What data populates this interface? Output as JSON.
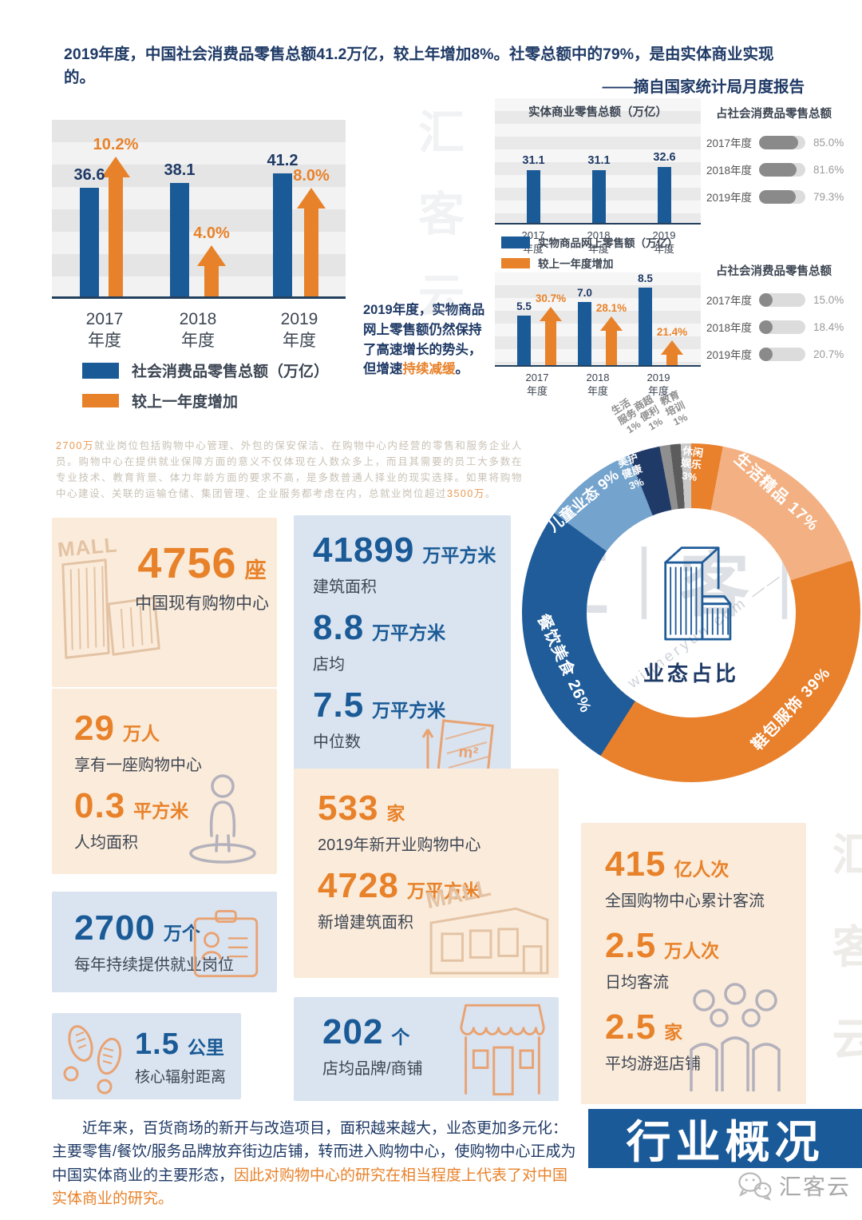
{
  "page": {
    "intro": "2019年度，中国社会消费品零售总额41.2万亿，较上年增加8%。社零总额中的79%，是由实体商业实现的。",
    "attribution": "——摘自国家统计局月度报告",
    "banner_title": "行业概况",
    "logo_text": "汇客云",
    "watermark_chars": "汇｜客｜云",
    "watermark_chars_plain": "汇 客 云",
    "watermark_domain": "—— winneryun.com ——"
  },
  "colors": {
    "bar_blue": "#1A5A96",
    "arrow_orange": "#E8822A",
    "navy_text": "#1F3A66",
    "peach_bg": "#FBEBDA",
    "blue_bg": "#D9E4F0",
    "banner_blue": "#1B5A99"
  },
  "paragraphs": {
    "jobs": {
      "lead": "2700万",
      "body": "就业岗位包括购物中心管理、外包的保安保洁、在购物中心内经营的零售和服务企业人员。购物中心在提供就业保障方面的意义不仅体现在人数众多上，而且其需要的员工大多数在专业技术、教育背景、体力年龄方面的要求不高，是多数普通人择业的现实选择。如果将购物中心建设、关联的运输仓储、集团管理、企业服务都考虑在内，总就业岗位超过",
      "tail_highlight": "3500万",
      "tail": "。"
    },
    "online_note": {
      "body": "2019年度，实物商品网上零售额仍然保持了高速增长的势头，但增速",
      "highlight": "持续减缓",
      "tail": "。"
    },
    "footer": {
      "body": "近年来，百货商场的新开与改造项目，面积越来越大，业态更加多元化：主要零售/餐饮/服务品牌放弃街边店铺，转而进入购物中心，使购物中心正成为中国实体商业的主要形态，",
      "highlight": "因此对购物中心的研究在相当程度上代表了对中国实体商业的研究。"
    }
  },
  "chart_data": [
    {
      "id": "social-retail",
      "type": "bar",
      "categories": [
        "2017年度",
        "2018年度",
        "2019年度"
      ],
      "series": [
        {
          "name": "社会消费品零售总额（万亿）",
          "values": [
            36.6,
            38.1,
            41.2
          ]
        },
        {
          "name": "较上一年度增加",
          "values_pct": [
            10.2,
            4.0,
            8.0
          ]
        }
      ],
      "legend_position": "bottom",
      "ylim": [
        0,
        59
      ]
    },
    {
      "id": "physical-retail",
      "type": "bar",
      "title": "实体商业零售总额（万亿）",
      "categories": [
        "2017年度",
        "2018年度",
        "2019年度"
      ],
      "values": [
        31.1,
        31.1,
        32.6
      ],
      "ylim": [
        0,
        70
      ]
    },
    {
      "id": "physical-share",
      "type": "bar",
      "title": "占社会消费品零售总额",
      "categories": [
        "2017年度",
        "2018年度",
        "2019年度"
      ],
      "values_pct": [
        85.0,
        81.6,
        79.3
      ]
    },
    {
      "id": "online-retail",
      "type": "bar",
      "categories": [
        "2017年度",
        "2018年度",
        "2019年度"
      ],
      "series": [
        {
          "name": "实物商品网上零售额（万亿）",
          "values": [
            5.5,
            7.0,
            8.5
          ]
        },
        {
          "name": "较上一年度增加",
          "values_pct": [
            30.7,
            28.1,
            21.4
          ]
        }
      ],
      "legend_position": "top",
      "ylim": [
        0,
        10
      ]
    },
    {
      "id": "online-share",
      "type": "bar",
      "title": "占社会消费品零售总额",
      "categories": [
        "2017年度",
        "2018年度",
        "2019年度"
      ],
      "values_pct": [
        15.0,
        18.4,
        20.7
      ]
    },
    {
      "id": "format-mix",
      "type": "pie",
      "title": "业态占比",
      "segments": [
        {
          "label": "休闲娱乐",
          "pct": 3,
          "color": "#E8802C"
        },
        {
          "label": "生活精品",
          "pct": 17,
          "color": "#F3B183"
        },
        {
          "label": "鞋包服饰",
          "pct": 39,
          "color": "#E8802C"
        },
        {
          "label": "餐饮美食",
          "pct": 26,
          "color": "#1F5C99"
        },
        {
          "label": "儿童业态",
          "pct": 9,
          "color": "#74A3CD"
        },
        {
          "label": "美护健康",
          "pct": 3,
          "color": "#203A68"
        },
        {
          "label": "生活服务",
          "pct": 1,
          "color": "#8F8F8F"
        },
        {
          "label": "商超便利",
          "pct": 1,
          "color": "#5C5C5C"
        },
        {
          "label": "教育培训",
          "pct": 1,
          "color": "#C9C9C9"
        }
      ]
    }
  ],
  "stats": {
    "existing": {
      "number": "4756",
      "unit": "座",
      "label": "中国现有购物中心"
    },
    "area": {
      "rows": [
        {
          "number": "41899",
          "unit": "万平方米",
          "label": "建筑面积"
        },
        {
          "number": "8.8",
          "unit": "万平方米",
          "label": "店均"
        },
        {
          "number": "7.5",
          "unit": "万平方米",
          "label": "中位数"
        }
      ]
    },
    "percap": {
      "rows": [
        {
          "number": "29",
          "unit": "万人",
          "label": "享有一座购物中心"
        },
        {
          "number": "0.3",
          "unit": "平方米",
          "label": "人均面积"
        }
      ]
    },
    "jobs": {
      "number": "2700",
      "unit": "万个",
      "label": "每年持续提供就业岗位"
    },
    "newopen": {
      "rows": [
        {
          "number": "533",
          "unit": "家",
          "label": "2019年新开业购物中心"
        },
        {
          "number": "4728",
          "unit": "万平方米",
          "label": "新增建筑面积"
        }
      ]
    },
    "radius": {
      "number": "1.5",
      "unit": "公里",
      "label": "核心辐射距离"
    },
    "brands": {
      "number": "202",
      "unit": "个",
      "label": "店均品牌/商铺"
    },
    "traffic": {
      "rows": [
        {
          "number": "415",
          "unit": "亿人次",
          "label": "全国购物中心累计客流"
        },
        {
          "number": "2.5",
          "unit": "万人次",
          "label": "日均客流"
        },
        {
          "number": "2.5",
          "unit": "家",
          "label": "平均游逛店铺"
        }
      ]
    }
  }
}
